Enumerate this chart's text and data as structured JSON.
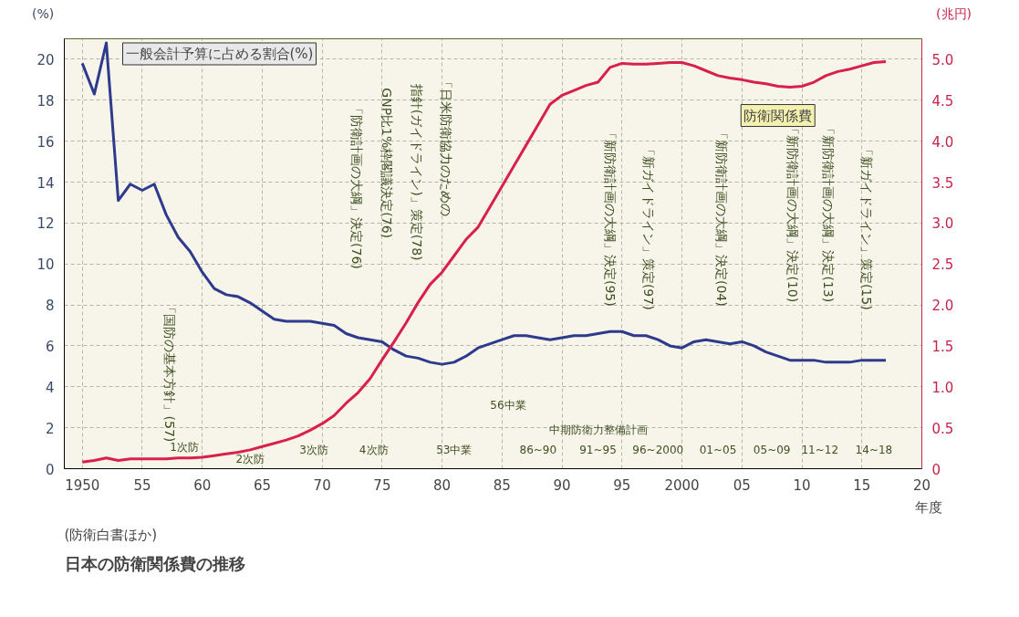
{
  "chart_data": {
    "type": "line",
    "title": "日本の防衛関係費の推移",
    "ylabel": "(%)",
    "y2label": "(兆円)",
    "x": [
      1950,
      1951,
      1952,
      1953,
      1954,
      1955,
      1956,
      1957,
      1958,
      1959,
      1960,
      1961,
      1962,
      1963,
      1964,
      1965,
      1966,
      1967,
      1968,
      1969,
      1970,
      1971,
      1972,
      1973,
      1974,
      1975,
      1976,
      1977,
      1978,
      1979,
      1980,
      1981,
      1982,
      1983,
      1984,
      1985,
      1986,
      1987,
      1988,
      1989,
      1990,
      1991,
      1992,
      1993,
      1994,
      1995,
      1996,
      1997,
      1998,
      1999,
      2000,
      2001,
      2002,
      2003,
      2004,
      2005,
      2006,
      2007,
      2008,
      2009,
      2010,
      2011,
      2012,
      2013,
      2014,
      2015,
      2016,
      2017
    ],
    "series": [
      {
        "name": "一般会計予算に占める割合(%)",
        "color": "#2e3a8c",
        "values": [
          19.8,
          18.3,
          20.8,
          13.1,
          13.9,
          13.6,
          13.9,
          12.4,
          11.3,
          10.6,
          9.6,
          8.8,
          8.5,
          8.4,
          8.1,
          7.7,
          7.3,
          7.2,
          7.2,
          7.2,
          7.1,
          7.0,
          6.6,
          6.4,
          6.3,
          6.2,
          5.8,
          5.5,
          5.4,
          5.2,
          5.1,
          5.2,
          5.5,
          5.9,
          6.1,
          6.3,
          6.5,
          6.5,
          6.4,
          6.3,
          6.4,
          6.5,
          6.5,
          6.6,
          6.7,
          6.7,
          6.5,
          6.5,
          6.3,
          6.0,
          5.9,
          6.2,
          6.3,
          6.2,
          6.1,
          6.2,
          6.0,
          5.7,
          5.5,
          5.3,
          5.3,
          5.3,
          5.2,
          5.2,
          5.2,
          5.3,
          5.3,
          5.3
        ]
      },
      {
        "name": "防衛関係費",
        "color": "#d9204a",
        "axis": "y2",
        "values": [
          0.08,
          0.1,
          0.13,
          0.1,
          0.12,
          0.12,
          0.12,
          0.12,
          0.13,
          0.13,
          0.14,
          0.16,
          0.18,
          0.2,
          0.23,
          0.27,
          0.31,
          0.35,
          0.4,
          0.47,
          0.55,
          0.65,
          0.8,
          0.93,
          1.1,
          1.33,
          1.55,
          1.78,
          2.03,
          2.25,
          2.4,
          2.6,
          2.8,
          2.95,
          3.2,
          3.45,
          3.7,
          3.95,
          4.2,
          4.45,
          4.56,
          4.62,
          4.68,
          4.72,
          4.9,
          4.95,
          4.94,
          4.94,
          4.95,
          4.96,
          4.96,
          4.92,
          4.86,
          4.8,
          4.77,
          4.75,
          4.72,
          4.7,
          4.67,
          4.66,
          4.67,
          4.72,
          4.8,
          4.85,
          4.88,
          4.92,
          4.96,
          4.97
        ]
      }
    ],
    "xlim": [
      1948.5,
      2020
    ],
    "ylim": [
      0,
      21
    ],
    "y2lim": [
      0,
      5.25
    ],
    "xticks": [
      1950,
      {
        "value": 1955,
        "label": "55"
      },
      {
        "value": 1960,
        "label": "60"
      },
      {
        "value": 1965,
        "label": "65"
      },
      {
        "value": 1970,
        "label": "70"
      },
      {
        "value": 1975,
        "label": "75"
      },
      {
        "value": 1980,
        "label": "80"
      },
      {
        "value": 1985,
        "label": "85"
      },
      {
        "value": 1990,
        "label": "90"
      },
      {
        "value": 1995,
        "label": "95"
      },
      2000,
      {
        "value": 2005,
        "label": "05"
      },
      {
        "value": 2010,
        "label": "10"
      },
      {
        "value": 2015,
        "label": "15"
      },
      {
        "value": 2020,
        "label": "20"
      }
    ],
    "xlabel": "年度",
    "yticks": [
      0,
      2,
      4,
      6,
      8,
      10,
      12,
      14,
      16,
      18,
      20
    ],
    "y2ticks": [
      0,
      0.5,
      {
        "value": 1,
        "label": "1.0"
      },
      1.5,
      {
        "value": 2,
        "label": "2.0"
      },
      2.5,
      {
        "value": 3,
        "label": "3.0"
      },
      3.5,
      {
        "value": 4,
        "label": "4.0"
      },
      4.5,
      {
        "value": 5,
        "label": "5.0"
      }
    ],
    "grid": true,
    "annotations": [
      "「国防の基本方針」(57)",
      "「日米防衛協力のための",
      "指針(ガイドライン)」策定(78)",
      "GNP比1%枠閣議決定(76)",
      "「防衛計画の大綱」決定(76)",
      "「新防衛計画の大綱」決定(95)",
      "「新ガイドライン」策定(97)",
      "「新防衛計画の大綱」決定(04)",
      "「新防衛計画の大綱」決定(10)",
      "「新防衛計画の大綱」決定(13)",
      "「新ガイドライン」策定(15)",
      "1次防",
      "2次防",
      "3次防",
      "4次防",
      "53中業",
      "56中業",
      "中期防衛力整備計画",
      "86~90",
      "91~95",
      "96~2000",
      "01~05",
      "05~09",
      "11~12",
      "14~18",
      "(防衛白書ほか)"
    ]
  }
}
